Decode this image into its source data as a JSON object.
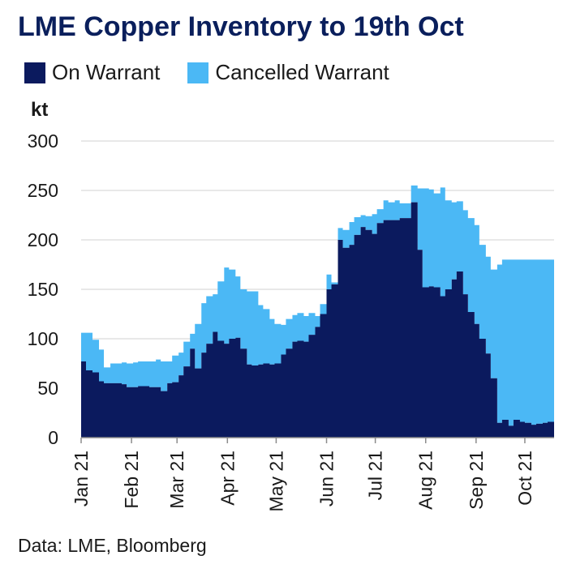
{
  "chart_data": {
    "type": "area",
    "title": "LME Copper Inventory to 19th Oct",
    "ylabel": "kt",
    "source": "Data: LME, Bloomberg",
    "ylim": [
      0,
      300
    ],
    "yticks": [
      0,
      50,
      100,
      150,
      200,
      250,
      300
    ],
    "xlim": [
      "2021-01-01",
      "2021-10-19"
    ],
    "xticks": [
      {
        "date": "2021-01-01",
        "label": "Jan 21"
      },
      {
        "date": "2021-02-01",
        "label": "Feb 21"
      },
      {
        "date": "2021-03-01",
        "label": "Mar 21"
      },
      {
        "date": "2021-04-01",
        "label": "Apr 21"
      },
      {
        "date": "2021-05-01",
        "label": "May 21"
      },
      {
        "date": "2021-06-01",
        "label": "Jun 21"
      },
      {
        "date": "2021-07-01",
        "label": "Jul 21"
      },
      {
        "date": "2021-08-01",
        "label": "Aug 21"
      },
      {
        "date": "2021-09-01",
        "label": "Sep 21"
      },
      {
        "date": "2021-10-01",
        "label": "Oct 21"
      }
    ],
    "grid": true,
    "stacked": true,
    "legend_position": "top-left",
    "x": [
      "2021-01-01",
      "2021-01-04",
      "2021-01-08",
      "2021-01-12",
      "2021-01-15",
      "2021-01-19",
      "2021-01-22",
      "2021-01-26",
      "2021-01-29",
      "2021-02-02",
      "2021-02-05",
      "2021-02-09",
      "2021-02-12",
      "2021-02-16",
      "2021-02-19",
      "2021-02-23",
      "2021-02-26",
      "2021-03-02",
      "2021-03-05",
      "2021-03-09",
      "2021-03-12",
      "2021-03-16",
      "2021-03-19",
      "2021-03-23",
      "2021-03-26",
      "2021-03-30",
      "2021-04-02",
      "2021-04-06",
      "2021-04-09",
      "2021-04-13",
      "2021-04-16",
      "2021-04-20",
      "2021-04-23",
      "2021-04-27",
      "2021-04-30",
      "2021-05-04",
      "2021-05-07",
      "2021-05-11",
      "2021-05-14",
      "2021-05-18",
      "2021-05-21",
      "2021-05-25",
      "2021-05-28",
      "2021-06-01",
      "2021-06-04",
      "2021-06-08",
      "2021-06-11",
      "2021-06-15",
      "2021-06-18",
      "2021-06-22",
      "2021-06-25",
      "2021-06-29",
      "2021-07-02",
      "2021-07-06",
      "2021-07-09",
      "2021-07-13",
      "2021-07-16",
      "2021-07-20",
      "2021-07-23",
      "2021-07-27",
      "2021-07-30",
      "2021-08-03",
      "2021-08-06",
      "2021-08-10",
      "2021-08-13",
      "2021-08-17",
      "2021-08-20",
      "2021-08-24",
      "2021-08-27",
      "2021-08-31",
      "2021-09-03",
      "2021-09-07",
      "2021-09-10",
      "2021-09-14",
      "2021-09-17",
      "2021-09-21",
      "2021-09-24",
      "2021-09-28",
      "2021-10-01",
      "2021-10-05",
      "2021-10-08",
      "2021-10-12",
      "2021-10-15",
      "2021-10-19"
    ],
    "series": [
      {
        "name": "On Warrant",
        "color": "#0b1a5e",
        "values": [
          77,
          68,
          66,
          57,
          55,
          55,
          55,
          54,
          51,
          51,
          52,
          52,
          51,
          51,
          47,
          55,
          56,
          63,
          72,
          90,
          70,
          86,
          95,
          107,
          98,
          95,
          100,
          101,
          90,
          74,
          73,
          74,
          75,
          74,
          75,
          84,
          90,
          97,
          98,
          97,
          104,
          112,
          125,
          150,
          155,
          200,
          192,
          195,
          205,
          213,
          210,
          206,
          217,
          220,
          220,
          220,
          222,
          222,
          238,
          190,
          152,
          153,
          152,
          143,
          150,
          160,
          168,
          145,
          127,
          115,
          100,
          85,
          60,
          15,
          18,
          12,
          18,
          16,
          15,
          13,
          14,
          15,
          16,
          16
        ]
      },
      {
        "name": "Cancelled Warrant",
        "color": "#4bb8f5",
        "values": [
          29,
          38,
          33,
          32,
          16,
          20,
          20,
          22,
          24,
          25,
          25,
          25,
          26,
          28,
          30,
          22,
          27,
          23,
          25,
          15,
          45,
          50,
          48,
          38,
          60,
          77,
          70,
          62,
          60,
          74,
          75,
          60,
          55,
          46,
          40,
          30,
          30,
          27,
          28,
          26,
          22,
          11,
          10,
          15,
          2,
          12,
          18,
          23,
          18,
          12,
          14,
          20,
          14,
          20,
          18,
          20,
          15,
          15,
          17,
          62,
          100,
          98,
          95,
          110,
          90,
          78,
          71,
          85,
          95,
          100,
          95,
          98,
          110,
          160,
          162,
          168,
          162,
          164,
          165,
          167,
          166,
          165,
          164,
          164
        ]
      }
    ]
  }
}
